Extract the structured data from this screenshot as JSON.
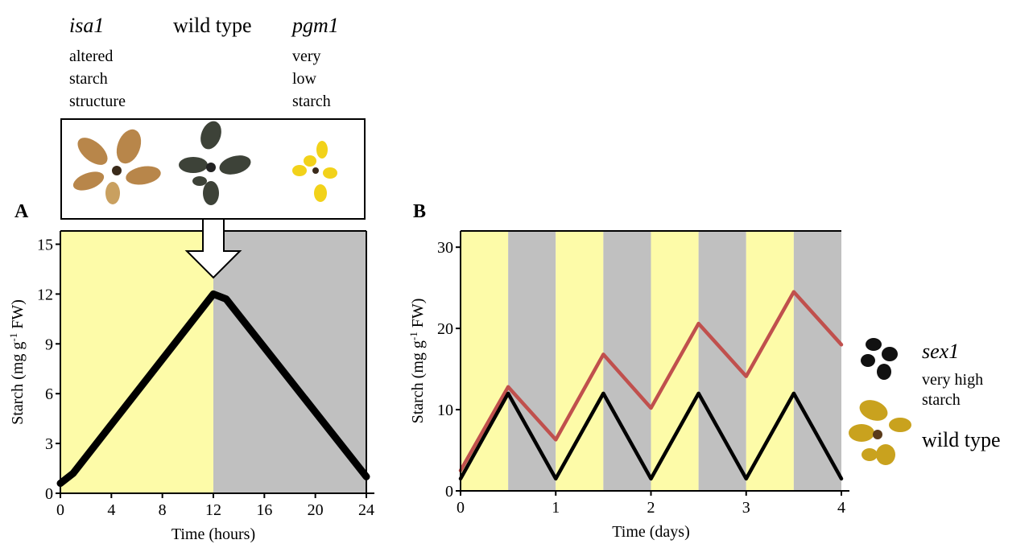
{
  "strains": [
    {
      "name": "isa1",
      "lines": [
        "altered",
        "starch",
        "structure"
      ]
    },
    {
      "name": "wild type",
      "lines": []
    },
    {
      "name": "pgm1",
      "lines": [
        "very",
        "low",
        "starch"
      ]
    }
  ],
  "panel_labels": [
    "A",
    "B"
  ],
  "legend_notes": {
    "sex1": [
      "very high",
      "starch"
    ]
  },
  "chart_data": [
    {
      "type": "line",
      "xlabel": "Time (hours)",
      "ylabel": {
        "pre": "Starch (mg g",
        "sup": "-1",
        "post": " FW)"
      },
      "x": [
        0,
        1,
        12,
        13,
        24
      ],
      "series": [
        {
          "name": "wild type",
          "color": "#000000",
          "values": [
            0.6,
            1.2,
            12.0,
            11.7,
            1.0
          ]
        }
      ],
      "xlim": [
        0,
        24
      ],
      "xticks": [
        0,
        4,
        8,
        12,
        16,
        20,
        24
      ],
      "ylim": [
        0,
        15.8
      ],
      "yticks": [
        0,
        3,
        6,
        9,
        12,
        15
      ],
      "shading": [
        {
          "start": 0,
          "end": 12,
          "color": "#fdfba8"
        },
        {
          "start": 12,
          "end": 24,
          "color": "#c0c0c0"
        }
      ]
    },
    {
      "type": "line",
      "xlabel": "Time (days)",
      "ylabel": {
        "pre": "Starch (mg g",
        "sup": "-1",
        "post": " FW)"
      },
      "x": [
        0,
        0.5,
        1,
        1.5,
        2,
        2.5,
        3,
        3.5,
        4
      ],
      "series": [
        {
          "name": "sex1",
          "color": "#c0504d",
          "values": [
            2.5,
            12.8,
            6.3,
            16.8,
            10.2,
            20.6,
            14.1,
            24.5,
            18.0
          ]
        },
        {
          "name": "wild type",
          "color": "#000000",
          "values": [
            1.5,
            12.0,
            1.5,
            12.0,
            1.5,
            12.0,
            1.5,
            12.0,
            1.5
          ]
        }
      ],
      "xlim": [
        0,
        4
      ],
      "xticks": [
        0,
        1,
        2,
        3,
        4
      ],
      "ylim": [
        0,
        32
      ],
      "yticks": [
        0,
        10,
        20,
        30
      ],
      "shading": [
        {
          "start": 0,
          "end": 0.5,
          "color": "#fdfba8"
        },
        {
          "start": 0.5,
          "end": 1,
          "color": "#c0c0c0"
        },
        {
          "start": 1,
          "end": 1.5,
          "color": "#fdfba8"
        },
        {
          "start": 1.5,
          "end": 2,
          "color": "#c0c0c0"
        },
        {
          "start": 2,
          "end": 2.5,
          "color": "#fdfba8"
        },
        {
          "start": 2.5,
          "end": 3,
          "color": "#c0c0c0"
        },
        {
          "start": 3,
          "end": 3.5,
          "color": "#fdfba8"
        },
        {
          "start": 3.5,
          "end": 4,
          "color": "#c0c0c0"
        }
      ]
    }
  ]
}
